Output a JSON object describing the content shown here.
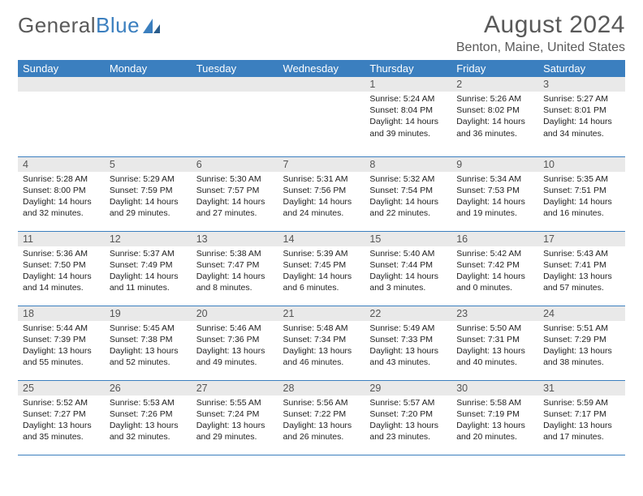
{
  "logo": {
    "part1": "General",
    "part2": "Blue"
  },
  "title": "August 2024",
  "location": "Benton, Maine, United States",
  "colors": {
    "header_bg": "#3b7fbf",
    "header_text": "#ffffff",
    "daynum_bg": "#e9e9e9",
    "row_border": "#3b7fbf",
    "text": "#222222"
  },
  "dayLabels": [
    "Sunday",
    "Monday",
    "Tuesday",
    "Wednesday",
    "Thursday",
    "Friday",
    "Saturday"
  ],
  "weeks": [
    [
      null,
      null,
      null,
      null,
      {
        "n": "1",
        "sr": "5:24 AM",
        "ss": "8:04 PM",
        "dl": "14 hours and 39 minutes."
      },
      {
        "n": "2",
        "sr": "5:26 AM",
        "ss": "8:02 PM",
        "dl": "14 hours and 36 minutes."
      },
      {
        "n": "3",
        "sr": "5:27 AM",
        "ss": "8:01 PM",
        "dl": "14 hours and 34 minutes."
      }
    ],
    [
      {
        "n": "4",
        "sr": "5:28 AM",
        "ss": "8:00 PM",
        "dl": "14 hours and 32 minutes."
      },
      {
        "n": "5",
        "sr": "5:29 AM",
        "ss": "7:59 PM",
        "dl": "14 hours and 29 minutes."
      },
      {
        "n": "6",
        "sr": "5:30 AM",
        "ss": "7:57 PM",
        "dl": "14 hours and 27 minutes."
      },
      {
        "n": "7",
        "sr": "5:31 AM",
        "ss": "7:56 PM",
        "dl": "14 hours and 24 minutes."
      },
      {
        "n": "8",
        "sr": "5:32 AM",
        "ss": "7:54 PM",
        "dl": "14 hours and 22 minutes."
      },
      {
        "n": "9",
        "sr": "5:34 AM",
        "ss": "7:53 PM",
        "dl": "14 hours and 19 minutes."
      },
      {
        "n": "10",
        "sr": "5:35 AM",
        "ss": "7:51 PM",
        "dl": "14 hours and 16 minutes."
      }
    ],
    [
      {
        "n": "11",
        "sr": "5:36 AM",
        "ss": "7:50 PM",
        "dl": "14 hours and 14 minutes."
      },
      {
        "n": "12",
        "sr": "5:37 AM",
        "ss": "7:49 PM",
        "dl": "14 hours and 11 minutes."
      },
      {
        "n": "13",
        "sr": "5:38 AM",
        "ss": "7:47 PM",
        "dl": "14 hours and 8 minutes."
      },
      {
        "n": "14",
        "sr": "5:39 AM",
        "ss": "7:45 PM",
        "dl": "14 hours and 6 minutes."
      },
      {
        "n": "15",
        "sr": "5:40 AM",
        "ss": "7:44 PM",
        "dl": "14 hours and 3 minutes."
      },
      {
        "n": "16",
        "sr": "5:42 AM",
        "ss": "7:42 PM",
        "dl": "14 hours and 0 minutes."
      },
      {
        "n": "17",
        "sr": "5:43 AM",
        "ss": "7:41 PM",
        "dl": "13 hours and 57 minutes."
      }
    ],
    [
      {
        "n": "18",
        "sr": "5:44 AM",
        "ss": "7:39 PM",
        "dl": "13 hours and 55 minutes."
      },
      {
        "n": "19",
        "sr": "5:45 AM",
        "ss": "7:38 PM",
        "dl": "13 hours and 52 minutes."
      },
      {
        "n": "20",
        "sr": "5:46 AM",
        "ss": "7:36 PM",
        "dl": "13 hours and 49 minutes."
      },
      {
        "n": "21",
        "sr": "5:48 AM",
        "ss": "7:34 PM",
        "dl": "13 hours and 46 minutes."
      },
      {
        "n": "22",
        "sr": "5:49 AM",
        "ss": "7:33 PM",
        "dl": "13 hours and 43 minutes."
      },
      {
        "n": "23",
        "sr": "5:50 AM",
        "ss": "7:31 PM",
        "dl": "13 hours and 40 minutes."
      },
      {
        "n": "24",
        "sr": "5:51 AM",
        "ss": "7:29 PM",
        "dl": "13 hours and 38 minutes."
      }
    ],
    [
      {
        "n": "25",
        "sr": "5:52 AM",
        "ss": "7:27 PM",
        "dl": "13 hours and 35 minutes."
      },
      {
        "n": "26",
        "sr": "5:53 AM",
        "ss": "7:26 PM",
        "dl": "13 hours and 32 minutes."
      },
      {
        "n": "27",
        "sr": "5:55 AM",
        "ss": "7:24 PM",
        "dl": "13 hours and 29 minutes."
      },
      {
        "n": "28",
        "sr": "5:56 AM",
        "ss": "7:22 PM",
        "dl": "13 hours and 26 minutes."
      },
      {
        "n": "29",
        "sr": "5:57 AM",
        "ss": "7:20 PM",
        "dl": "13 hours and 23 minutes."
      },
      {
        "n": "30",
        "sr": "5:58 AM",
        "ss": "7:19 PM",
        "dl": "13 hours and 20 minutes."
      },
      {
        "n": "31",
        "sr": "5:59 AM",
        "ss": "7:17 PM",
        "dl": "13 hours and 17 minutes."
      }
    ]
  ],
  "labels": {
    "sunrise": "Sunrise: ",
    "sunset": "Sunset: ",
    "daylight": "Daylight: "
  }
}
